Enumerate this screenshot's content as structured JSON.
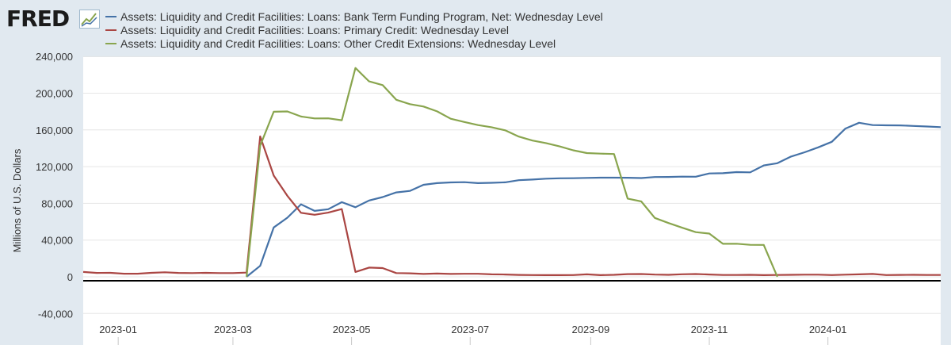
{
  "brand": {
    "logo_text": "FRED",
    "logo_icon": "fred-chart-mark"
  },
  "legend": [
    {
      "label": "Assets: Liquidity and Credit Facilities: Loans: Bank Term Funding Program, Net: Wednesday Level",
      "color": "#4572a7"
    },
    {
      "label": "Assets: Liquidity and Credit Facilities: Loans: Primary Credit: Wednesday Level",
      "color": "#aa4643"
    },
    {
      "label": "Assets: Liquidity and Credit Facilities: Loans: Other Credit Extensions: Wednesday Level",
      "color": "#89a54e"
    }
  ],
  "chart_data": {
    "type": "line",
    "ylabel": "Millions of U.S. Dollars",
    "ylim": [
      -40000,
      240000
    ],
    "yticks": [
      -40000,
      0,
      40000,
      80000,
      120000,
      160000,
      200000,
      240000
    ],
    "ytick_labels": [
      "-40,000",
      "0",
      "40,000",
      "80,000",
      "120,000",
      "160,000",
      "200,000",
      "240,000"
    ],
    "xlim": [
      "2022-12-14",
      "2024-02-28"
    ],
    "xticks": [
      "2023-01-01",
      "2023-03-01",
      "2023-05-01",
      "2023-07-01",
      "2023-09-01",
      "2023-11-01",
      "2024-01-01"
    ],
    "xtick_labels": [
      "2023-01",
      "2023-03",
      "2023-05",
      "2023-07",
      "2023-09",
      "2023-11",
      "2024-01"
    ],
    "grid": true,
    "zero_line": true,
    "series": [
      {
        "name": "Assets: Liquidity and Credit Facilities: Loans: Bank Term Funding Program, Net: Wednesday Level",
        "color": "#4572a7",
        "points": [
          [
            "2023-03-08",
            0
          ],
          [
            "2023-03-15",
            11900
          ],
          [
            "2023-03-22",
            53700
          ],
          [
            "2023-03-29",
            64400
          ],
          [
            "2023-04-05",
            79000
          ],
          [
            "2023-04-12",
            71800
          ],
          [
            "2023-04-19",
            73600
          ],
          [
            "2023-04-26",
            81300
          ],
          [
            "2023-05-03",
            75800
          ],
          [
            "2023-05-10",
            83100
          ],
          [
            "2023-05-17",
            86800
          ],
          [
            "2023-05-24",
            91900
          ],
          [
            "2023-05-31",
            93600
          ],
          [
            "2023-06-07",
            100200
          ],
          [
            "2023-06-14",
            102000
          ],
          [
            "2023-06-21",
            102800
          ],
          [
            "2023-06-28",
            103100
          ],
          [
            "2023-07-05",
            102000
          ],
          [
            "2023-07-12",
            102400
          ],
          [
            "2023-07-19",
            102900
          ],
          [
            "2023-07-26",
            105200
          ],
          [
            "2023-08-02",
            105900
          ],
          [
            "2023-08-09",
            106900
          ],
          [
            "2023-08-16",
            107300
          ],
          [
            "2023-08-23",
            107400
          ],
          [
            "2023-08-30",
            107700
          ],
          [
            "2023-09-06",
            108000
          ],
          [
            "2023-09-13",
            108000
          ],
          [
            "2023-09-20",
            107900
          ],
          [
            "2023-09-27",
            107600
          ],
          [
            "2023-10-04",
            108700
          ],
          [
            "2023-10-11",
            108800
          ],
          [
            "2023-10-18",
            109100
          ],
          [
            "2023-10-25",
            109000
          ],
          [
            "2023-11-01",
            112600
          ],
          [
            "2023-11-08",
            112800
          ],
          [
            "2023-11-15",
            114000
          ],
          [
            "2023-11-22",
            113800
          ],
          [
            "2023-11-29",
            121300
          ],
          [
            "2023-12-06",
            123700
          ],
          [
            "2023-12-13",
            131000
          ],
          [
            "2023-12-20",
            135600
          ],
          [
            "2023-12-27",
            141000
          ],
          [
            "2024-01-03",
            147000
          ],
          [
            "2024-01-10",
            161500
          ],
          [
            "2024-01-17",
            167800
          ],
          [
            "2024-01-24",
            165300
          ],
          [
            "2024-01-31",
            165000
          ],
          [
            "2024-02-07",
            164900
          ],
          [
            "2024-02-14",
            164300
          ],
          [
            "2024-02-21",
            163700
          ],
          [
            "2024-02-28",
            163000
          ]
        ]
      },
      {
        "name": "Assets: Liquidity and Credit Facilities: Loans: Primary Credit: Wednesday Level",
        "color": "#aa4643",
        "points": [
          [
            "2022-12-14",
            5300
          ],
          [
            "2022-12-21",
            4200
          ],
          [
            "2022-12-28",
            4300
          ],
          [
            "2023-01-04",
            3400
          ],
          [
            "2023-01-11",
            3400
          ],
          [
            "2023-01-18",
            4300
          ],
          [
            "2023-01-25",
            4900
          ],
          [
            "2023-02-01",
            4200
          ],
          [
            "2023-02-08",
            4100
          ],
          [
            "2023-02-15",
            4300
          ],
          [
            "2023-02-22",
            4100
          ],
          [
            "2023-03-01",
            4100
          ],
          [
            "2023-03-08",
            4600
          ],
          [
            "2023-03-15",
            152900
          ],
          [
            "2023-03-22",
            110200
          ],
          [
            "2023-03-29",
            88200
          ],
          [
            "2023-04-05",
            69700
          ],
          [
            "2023-04-12",
            67600
          ],
          [
            "2023-04-19",
            69900
          ],
          [
            "2023-04-26",
            73800
          ],
          [
            "2023-05-03",
            5300
          ],
          [
            "2023-05-10",
            10000
          ],
          [
            "2023-05-17",
            9500
          ],
          [
            "2023-05-24",
            4100
          ],
          [
            "2023-05-31",
            3800
          ],
          [
            "2023-06-07",
            3100
          ],
          [
            "2023-06-14",
            3500
          ],
          [
            "2023-06-21",
            3100
          ],
          [
            "2023-06-28",
            3300
          ],
          [
            "2023-07-05",
            3300
          ],
          [
            "2023-07-12",
            2700
          ],
          [
            "2023-07-19",
            2500
          ],
          [
            "2023-07-26",
            2100
          ],
          [
            "2023-08-02",
            1900
          ],
          [
            "2023-08-09",
            1800
          ],
          [
            "2023-08-16",
            1800
          ],
          [
            "2023-08-23",
            1900
          ],
          [
            "2023-08-30",
            2700
          ],
          [
            "2023-09-06",
            1800
          ],
          [
            "2023-09-13",
            2200
          ],
          [
            "2023-09-20",
            2900
          ],
          [
            "2023-09-27",
            3000
          ],
          [
            "2023-10-04",
            2400
          ],
          [
            "2023-10-11",
            2200
          ],
          [
            "2023-10-18",
            2800
          ],
          [
            "2023-10-25",
            3000
          ],
          [
            "2023-11-01",
            2500
          ],
          [
            "2023-11-08",
            2000
          ],
          [
            "2023-11-15",
            2000
          ],
          [
            "2023-11-22",
            2200
          ],
          [
            "2023-11-29",
            1800
          ],
          [
            "2023-12-06",
            2000
          ],
          [
            "2023-12-13",
            2200
          ],
          [
            "2023-12-20",
            2300
          ],
          [
            "2023-12-27",
            2300
          ],
          [
            "2024-01-03",
            1900
          ],
          [
            "2024-01-10",
            2300
          ],
          [
            "2024-01-17",
            2700
          ],
          [
            "2024-01-24",
            3100
          ],
          [
            "2024-01-31",
            1900
          ],
          [
            "2024-02-07",
            2100
          ],
          [
            "2024-02-14",
            2200
          ],
          [
            "2024-02-21",
            2000
          ],
          [
            "2024-02-28",
            2000
          ]
        ]
      },
      {
        "name": "Assets: Liquidity and Credit Facilities: Loans: Other Credit Extensions: Wednesday Level",
        "color": "#89a54e",
        "points": [
          [
            "2023-03-08",
            0
          ],
          [
            "2023-03-15",
            142800
          ],
          [
            "2023-03-22",
            179800
          ],
          [
            "2023-03-29",
            180100
          ],
          [
            "2023-04-05",
            174600
          ],
          [
            "2023-04-12",
            172500
          ],
          [
            "2023-04-19",
            172600
          ],
          [
            "2023-04-26",
            170500
          ],
          [
            "2023-05-03",
            227500
          ],
          [
            "2023-05-10",
            212900
          ],
          [
            "2023-05-17",
            208800
          ],
          [
            "2023-05-24",
            192800
          ],
          [
            "2023-05-31",
            188100
          ],
          [
            "2023-06-07",
            185500
          ],
          [
            "2023-06-14",
            180200
          ],
          [
            "2023-06-21",
            172200
          ],
          [
            "2023-06-28",
            168600
          ],
          [
            "2023-07-05",
            165300
          ],
          [
            "2023-07-12",
            162900
          ],
          [
            "2023-07-19",
            159600
          ],
          [
            "2023-07-26",
            152700
          ],
          [
            "2023-08-02",
            148400
          ],
          [
            "2023-08-09",
            145700
          ],
          [
            "2023-08-16",
            142000
          ],
          [
            "2023-08-23",
            137800
          ],
          [
            "2023-08-30",
            134800
          ],
          [
            "2023-09-06",
            134200
          ],
          [
            "2023-09-13",
            133700
          ],
          [
            "2023-09-20",
            85200
          ],
          [
            "2023-09-27",
            82100
          ],
          [
            "2023-10-04",
            64100
          ],
          [
            "2023-10-11",
            58600
          ],
          [
            "2023-10-18",
            53500
          ],
          [
            "2023-10-25",
            48600
          ],
          [
            "2023-11-01",
            47100
          ],
          [
            "2023-11-08",
            35900
          ],
          [
            "2023-11-15",
            36000
          ],
          [
            "2023-11-22",
            34800
          ],
          [
            "2023-11-29",
            34700
          ],
          [
            "2023-12-06",
            0
          ]
        ]
      }
    ]
  }
}
